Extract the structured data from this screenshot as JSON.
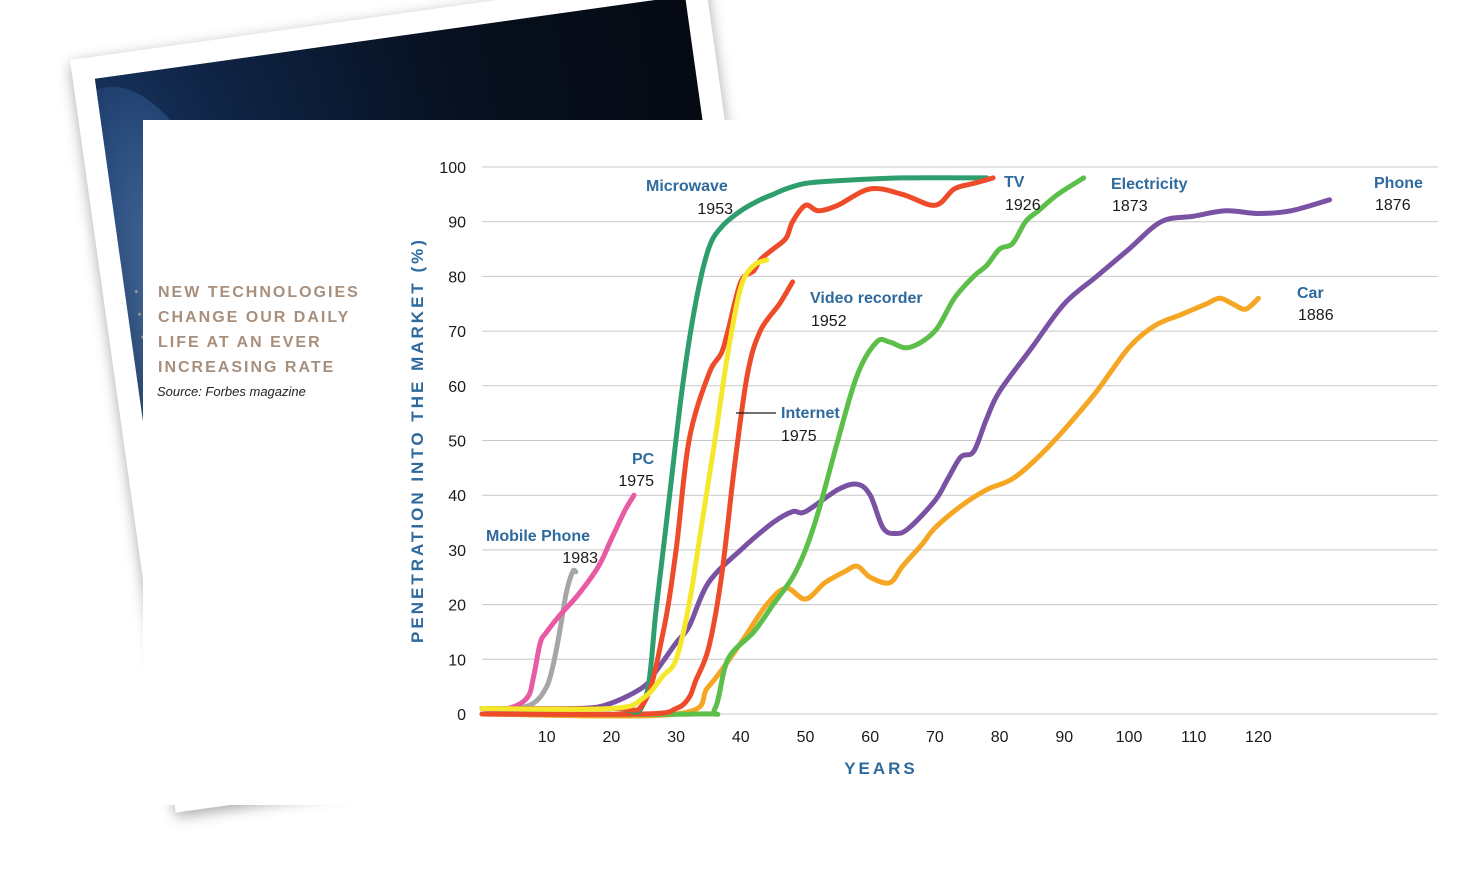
{
  "headline": {
    "lines": [
      "NEW TECHNOLOGIES",
      "CHANGE OUR DAILY",
      "LIFE AT AN EVER",
      "INCREASING RATE"
    ],
    "source": "Source: Forbes magazine"
  },
  "colors": {
    "axis_text": "#2e6a9e",
    "headline": "#a88f7c",
    "grid": "#c8c8c8"
  },
  "chart_data": {
    "type": "line",
    "title": "",
    "xlabel": "YEARS",
    "ylabel": "PENETRATION INTO THE MARKET (%)",
    "xlim": [
      0,
      138
    ],
    "ylim": [
      0,
      100
    ],
    "x_ticks": [
      10,
      20,
      30,
      40,
      50,
      60,
      70,
      80,
      90,
      100,
      110,
      120
    ],
    "y_ticks": [
      0,
      10,
      20,
      30,
      40,
      50,
      60,
      70,
      80,
      90,
      100
    ],
    "grid": "horizontal",
    "series": [
      {
        "name": "Mobile Phone",
        "year": "1983",
        "color": "#a6a6a6",
        "x": [
          0,
          5,
          8,
          10,
          11,
          12,
          13,
          14,
          14.5
        ],
        "y": [
          1,
          1,
          2,
          5,
          9,
          15,
          22,
          26,
          26
        ]
      },
      {
        "name": "PC",
        "year": "1975",
        "color": "#e85aa3",
        "x": [
          0,
          4,
          7,
          8,
          9,
          10,
          12,
          15,
          18,
          20,
          22,
          23.5
        ],
        "y": [
          1,
          1,
          3,
          7,
          13,
          15,
          18,
          22,
          27,
          32,
          37,
          40
        ]
      },
      {
        "name": "Microwave",
        "year": "1953",
        "color": "#2e9e6e",
        "x": [
          0,
          20,
          25,
          27,
          29,
          31,
          33,
          35,
          37,
          40,
          43,
          45,
          47,
          50,
          55,
          65,
          78
        ],
        "y": [
          1,
          1,
          2,
          20,
          40,
          60,
          75,
          85,
          89,
          92,
          94,
          95,
          96,
          97,
          97.5,
          98,
          98
        ]
      },
      {
        "name": "TV",
        "year": "1926",
        "color": "#ee4b2b",
        "x": [
          0,
          20,
          25,
          28,
          30,
          32,
          35,
          37,
          38,
          40,
          42,
          43,
          45,
          47,
          48,
          50,
          52,
          55,
          60,
          65,
          70,
          73,
          76,
          79
        ],
        "y": [
          1,
          1,
          2,
          15,
          30,
          50,
          62,
          66,
          70,
          79,
          81,
          83,
          85,
          87,
          90,
          93,
          92,
          93,
          96,
          95,
          93,
          96,
          97,
          98
        ]
      },
      {
        "name": "Internet",
        "year": "1975",
        "color": "#f5e82a",
        "x": [
          0,
          20,
          25,
          28,
          30,
          32,
          34,
          36,
          38,
          40,
          42,
          44
        ],
        "y": [
          1,
          1,
          3,
          7,
          10,
          20,
          35,
          50,
          66,
          78,
          82,
          83
        ]
      },
      {
        "name": "Video recorder",
        "year": "1952",
        "color": "#ee4b2b",
        "x": [
          0,
          25,
          30,
          32,
          33,
          35,
          37,
          39,
          41,
          43,
          46,
          48
        ],
        "y": [
          0,
          0,
          1,
          3,
          6,
          12,
          25,
          45,
          62,
          70,
          75,
          79
        ]
      },
      {
        "name": "Electricity",
        "year": "1873",
        "color": "#5cbf4a",
        "x": [
          0,
          33,
          36,
          38,
          42,
          45,
          48,
          50,
          52,
          55,
          58,
          61,
          63,
          66,
          70,
          73,
          76,
          78,
          80,
          82,
          84,
          86,
          89,
          93
        ],
        "y": [
          0,
          0,
          1,
          10,
          15,
          20,
          25,
          30,
          37,
          50,
          62,
          68,
          68,
          67,
          70,
          76,
          80,
          82,
          85,
          86,
          90,
          92,
          95,
          98
        ]
      },
      {
        "name": "Phone",
        "year": "1876",
        "color": "#7a52a3",
        "x": [
          0,
          15,
          20,
          25,
          27,
          30,
          32,
          35,
          40,
          45,
          48,
          50,
          55,
          58,
          60,
          62,
          64,
          66,
          70,
          72,
          74,
          76,
          78,
          80,
          85,
          90,
          95,
          100,
          105,
          110,
          115,
          120,
          125,
          131
        ],
        "y": [
          1,
          1,
          2,
          5,
          8,
          13,
          16,
          24,
          30,
          35,
          37,
          37,
          41,
          42,
          40,
          34,
          33,
          34,
          39,
          43,
          47,
          48,
          54,
          59,
          67,
          75,
          80,
          85,
          90,
          91,
          92,
          91.5,
          92,
          94
        ]
      },
      {
        "name": "Car",
        "year": "1886",
        "color": "#f5a623",
        "x": [
          0,
          30,
          35,
          40,
          44,
          47,
          50,
          53,
          56,
          58,
          60,
          63,
          65,
          68,
          70,
          74,
          78,
          82,
          86,
          90,
          95,
          100,
          104,
          108,
          112,
          114,
          116,
          118,
          120
        ],
        "y": [
          0,
          0,
          5,
          13,
          20,
          23,
          21,
          24,
          26,
          27,
          25,
          24,
          27,
          31,
          34,
          38,
          41,
          43,
          47,
          52,
          59,
          67,
          71,
          73,
          75,
          76,
          75,
          74,
          76
        ]
      }
    ]
  }
}
